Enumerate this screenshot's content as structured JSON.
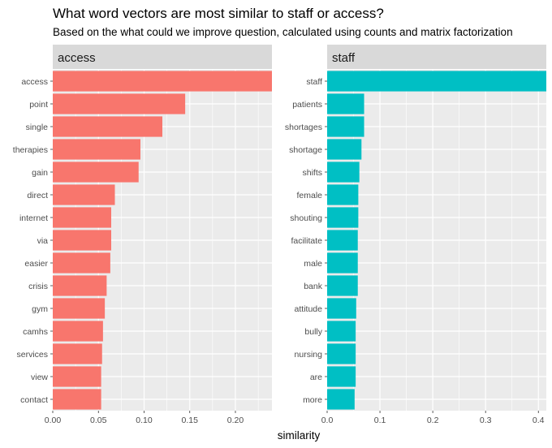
{
  "title": "What word vectors are most similar to staff or access?",
  "subtitle": "Based on the what could we improve question, calculated using counts and matrix factorization",
  "xlabel": "similarity",
  "colors": {
    "panel_bg": "#ebebeb",
    "strip_bg": "#d9d9d9",
    "grid": "#ffffff"
  },
  "chart_data": [
    {
      "type": "bar",
      "orientation": "horizontal",
      "facet": "access",
      "color": "#f8766d",
      "xlim": [
        0,
        0.24
      ],
      "xticks": [
        0.0,
        0.05,
        0.1,
        0.15,
        0.2
      ],
      "xtick_labels": [
        "0.00",
        "0.05",
        "0.10",
        "0.15",
        "0.20"
      ],
      "categories": [
        "access",
        "point",
        "single",
        "therapies",
        "gain",
        "direct",
        "internet",
        "via",
        "easier",
        "crisis",
        "gym",
        "camhs",
        "services",
        "view",
        "contact"
      ],
      "values": [
        0.24,
        0.145,
        0.12,
        0.096,
        0.094,
        0.068,
        0.064,
        0.064,
        0.063,
        0.059,
        0.057,
        0.055,
        0.054,
        0.053,
        0.053
      ]
    },
    {
      "type": "bar",
      "orientation": "horizontal",
      "facet": "staff",
      "color": "#00bfc4",
      "xlim": [
        0,
        0.415
      ],
      "xticks": [
        0.0,
        0.1,
        0.2,
        0.3,
        0.4
      ],
      "xtick_labels": [
        "0.0",
        "0.1",
        "0.2",
        "0.3",
        "0.4"
      ],
      "categories": [
        "staff",
        "patients",
        "shortages",
        "shortage",
        "shifts",
        "female",
        "shouting",
        "facilitate",
        "male",
        "bank",
        "attitude",
        "bully",
        "nursing",
        "are",
        "more"
      ],
      "values": [
        0.415,
        0.07,
        0.07,
        0.065,
        0.061,
        0.059,
        0.059,
        0.058,
        0.058,
        0.058,
        0.055,
        0.054,
        0.054,
        0.054,
        0.052
      ]
    }
  ]
}
